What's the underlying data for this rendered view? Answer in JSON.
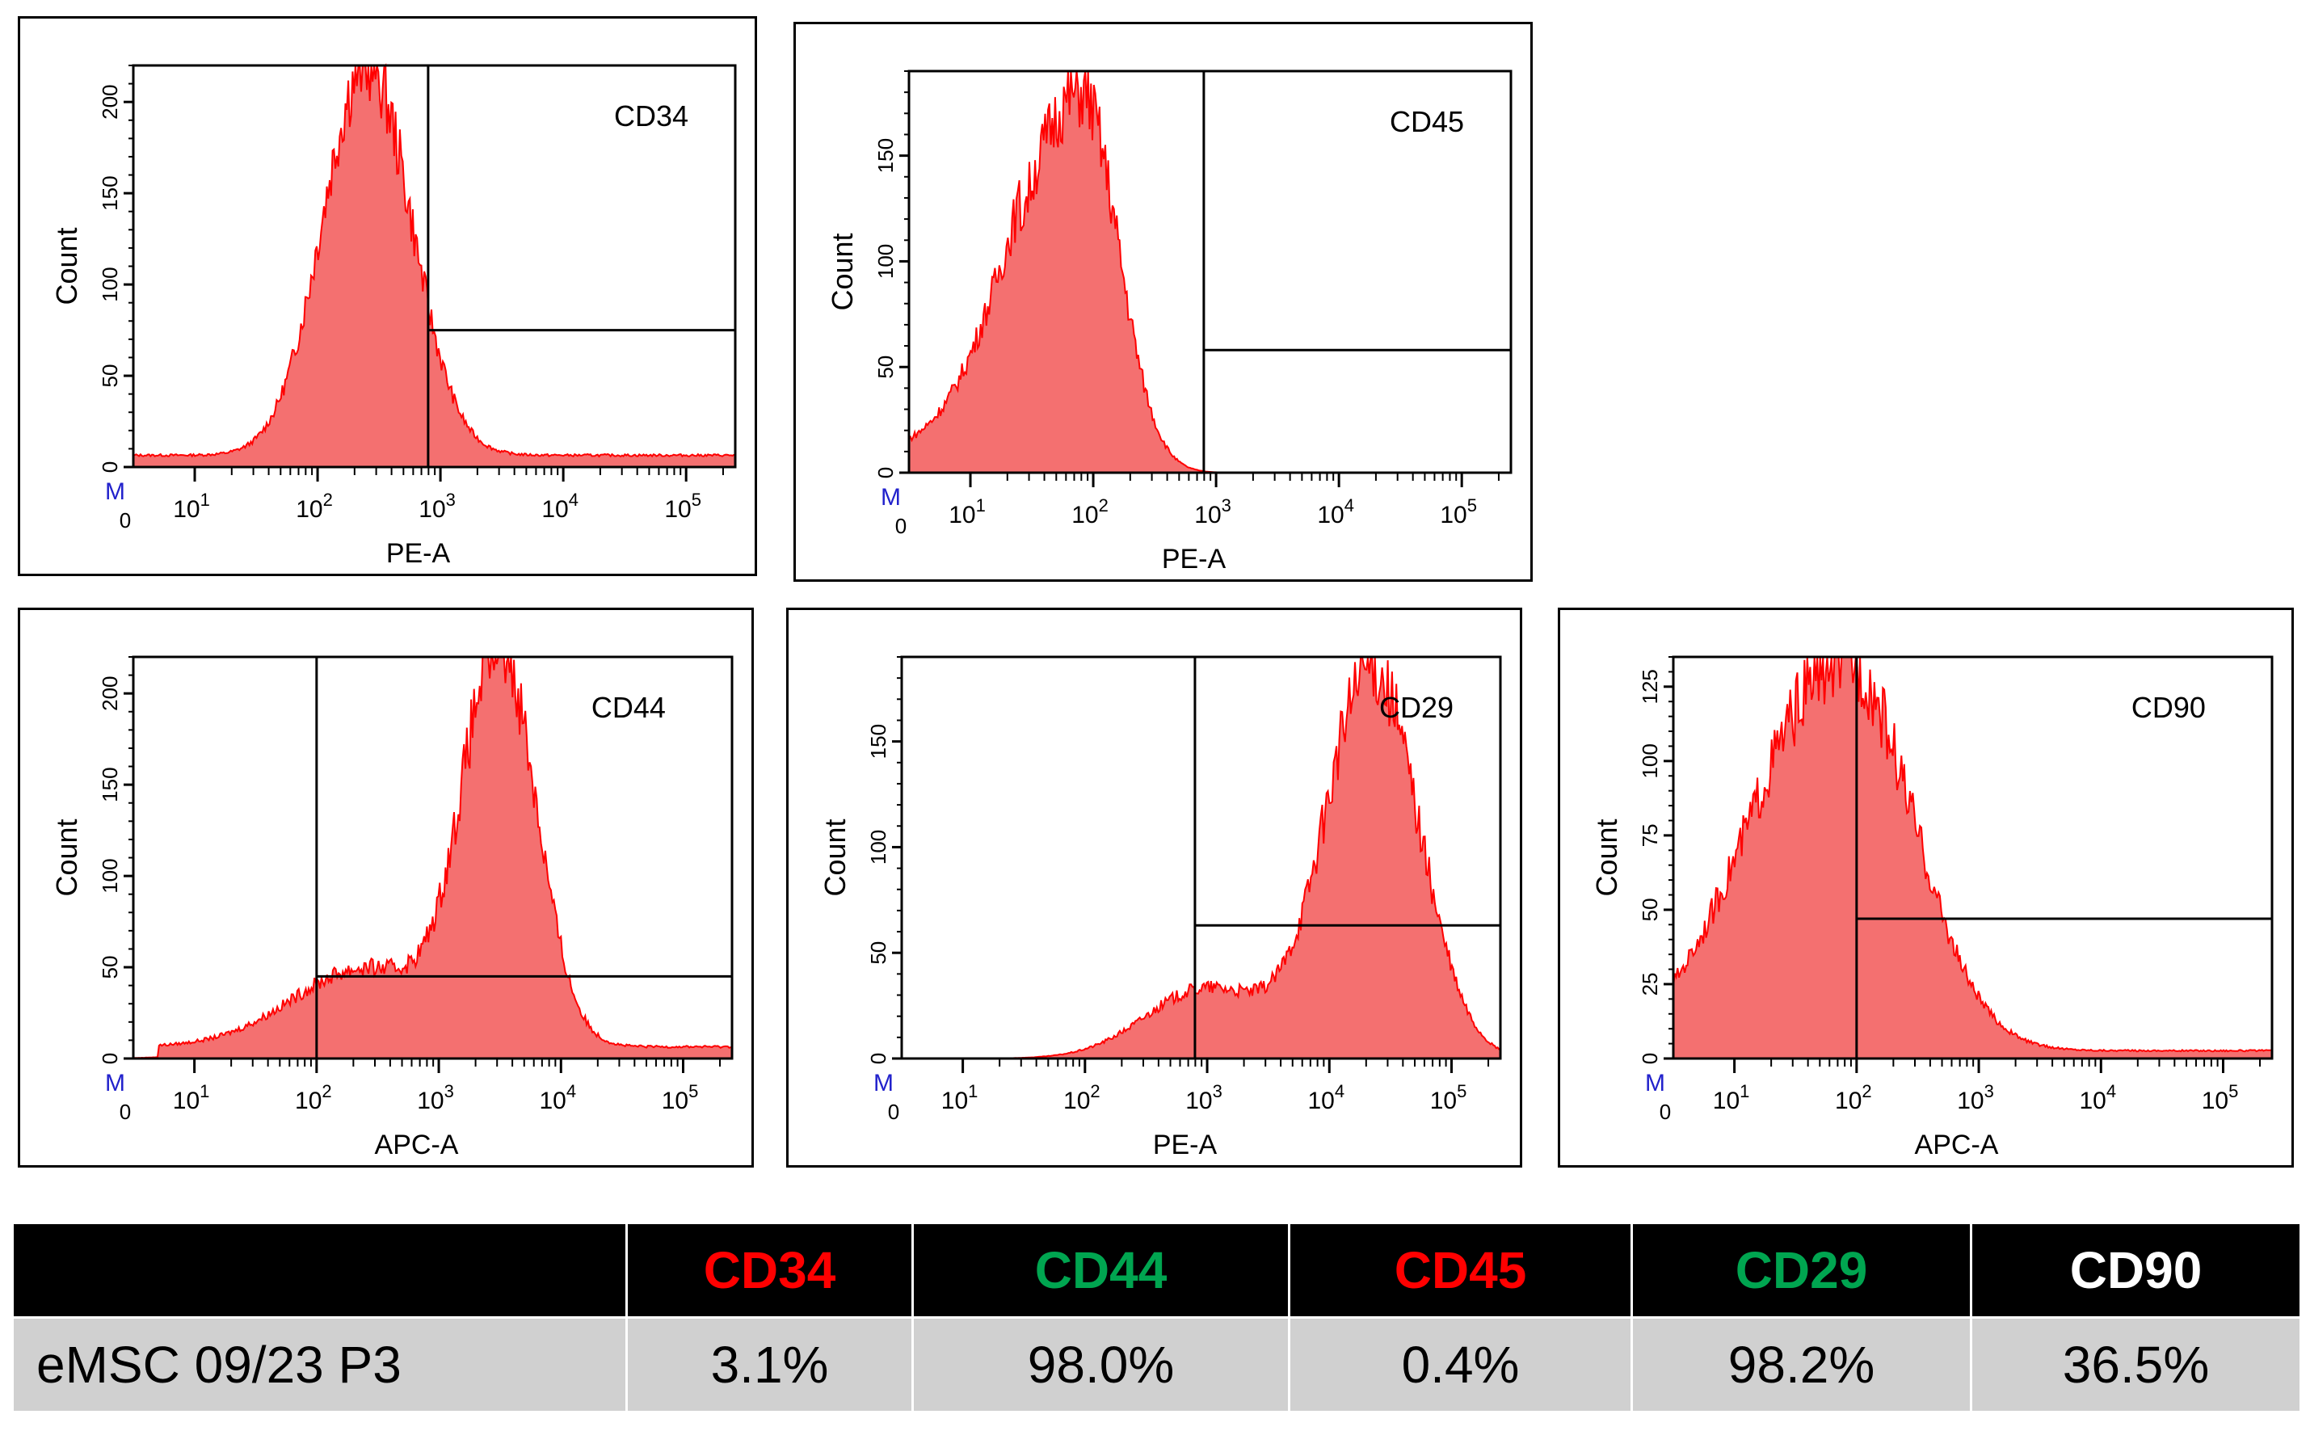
{
  "chart_data": [
    {
      "type": "histogram",
      "marker": "CD34",
      "xlabel": "PE-A",
      "ylabel": "Count",
      "x_scale": "log",
      "x_ticks": [
        "0",
        "10^1",
        "10^2",
        "10^3",
        "10^4",
        "10^5"
      ],
      "ylim": [
        0,
        220
      ],
      "y_ticks": [
        0,
        50,
        100,
        150,
        200
      ],
      "m_label": "M",
      "peak_x_log": 2.4,
      "peak_count": 215,
      "gate_x_log": 2.9,
      "gate_level": 75,
      "positive_percent": "3.1%"
    },
    {
      "type": "histogram",
      "marker": "CD45",
      "xlabel": "PE-A",
      "ylabel": "Count",
      "x_scale": "log",
      "x_ticks": [
        "0",
        "10^1",
        "10^2",
        "10^3",
        "10^4",
        "10^5"
      ],
      "ylim": [
        0,
        190
      ],
      "y_ticks": [
        0,
        50,
        100,
        150
      ],
      "m_label": "M",
      "peak_x_log": 1.9,
      "peak_count": 180,
      "gate_x_log": 2.9,
      "gate_level": 58,
      "positive_percent": "0.4%"
    },
    {
      "type": "histogram",
      "marker": "CD44",
      "xlabel": "APC-A",
      "ylabel": "Count",
      "x_scale": "log",
      "x_ticks": [
        "0",
        "10^1",
        "10^2",
        "10^3",
        "10^4",
        "10^5"
      ],
      "ylim": [
        0,
        220
      ],
      "y_ticks": [
        0,
        50,
        100,
        150,
        200
      ],
      "m_label": "M",
      "peak_x_log": 3.5,
      "peak_count": 215,
      "gate_x_log": 2.0,
      "gate_level": 45,
      "positive_percent": "98.0%"
    },
    {
      "type": "histogram",
      "marker": "CD29",
      "xlabel": "PE-A",
      "ylabel": "Count",
      "x_scale": "log",
      "x_ticks": [
        "0",
        "10^1",
        "10^2",
        "10^3",
        "10^4",
        "10^5"
      ],
      "ylim": [
        0,
        190
      ],
      "y_ticks": [
        0,
        50,
        100,
        150
      ],
      "m_label": "M",
      "peak_x_log": 4.35,
      "peak_count": 185,
      "gate_x_log": 2.9,
      "gate_level": 63,
      "positive_percent": "98.2%"
    },
    {
      "type": "histogram",
      "marker": "CD90",
      "xlabel": "APC-A",
      "ylabel": "Count",
      "x_scale": "log",
      "x_ticks": [
        "0",
        "10^1",
        "10^2",
        "10^3",
        "10^4",
        "10^5"
      ],
      "ylim": [
        0,
        135
      ],
      "y_ticks": [
        0,
        25,
        50,
        75,
        100,
        125
      ],
      "m_label": "M",
      "peak_x_log": 1.9,
      "peak_count": 132,
      "gate_x_log": 2.0,
      "gate_level": 47,
      "positive_percent": "36.5%"
    }
  ],
  "table": {
    "row_label": "eMSC 09/23 P3",
    "headers": [
      {
        "label": "CD34",
        "color": "#ff0000"
      },
      {
        "label": "CD44",
        "color": "#00a550"
      },
      {
        "label": "CD45",
        "color": "#ff0000"
      },
      {
        "label": "CD29",
        "color": "#00a550"
      },
      {
        "label": "CD90",
        "color": "#ffffff"
      }
    ],
    "values": [
      "3.1%",
      "98.0%",
      "0.4%",
      "98.2%",
      "36.5%"
    ]
  },
  "colors": {
    "fill": "#f47070",
    "stroke": "#ff0000",
    "axis": "#000000",
    "m_color": "#2222cc"
  }
}
